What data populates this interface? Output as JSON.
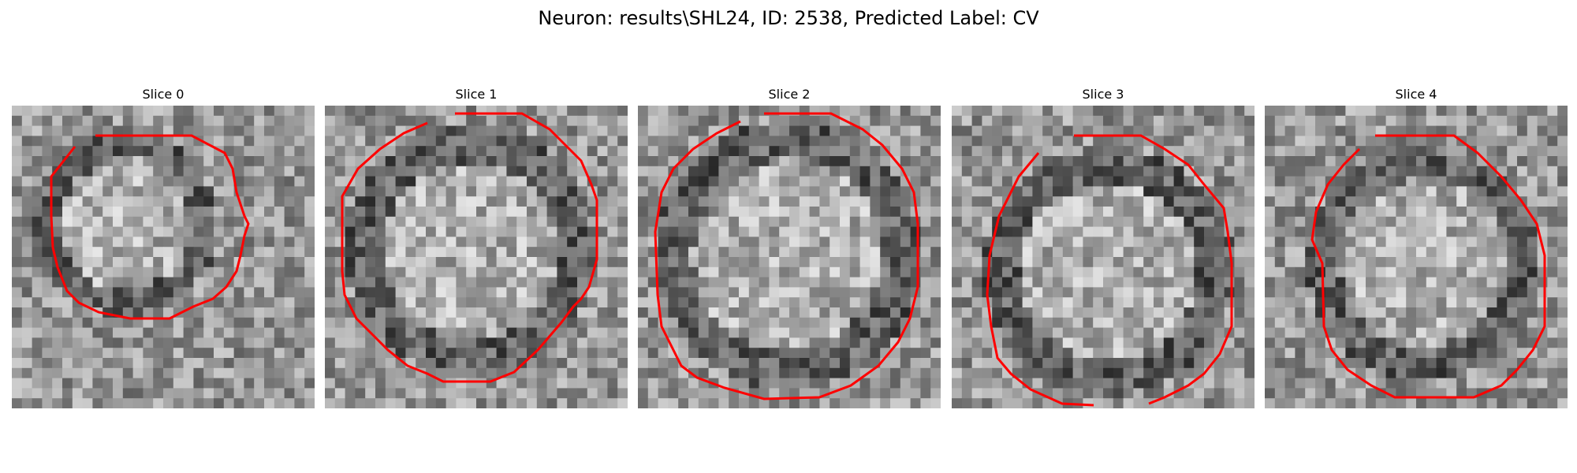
{
  "figure": {
    "title": "Neuron: results\\SHL24, ID: 2538, Predicted Label: CV"
  },
  "contour_color": "#ff0000",
  "panels": [
    {
      "title": "Slice 0"
    },
    {
      "title": "Slice 1"
    },
    {
      "title": "Slice 2"
    },
    {
      "title": "Slice 3"
    },
    {
      "title": "Slice 4"
    }
  ]
}
